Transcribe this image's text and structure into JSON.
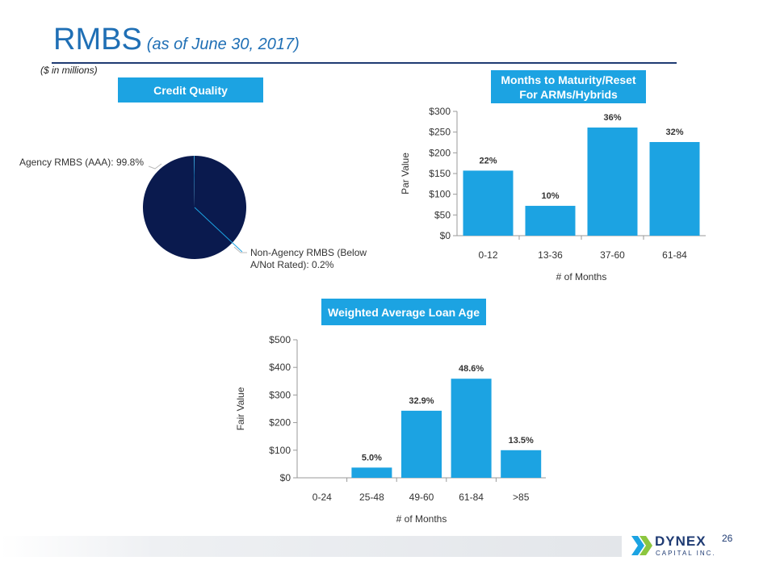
{
  "title": "RMBS",
  "subtitle": "(as of June 30, 2017)",
  "units_note": "($ in millions)",
  "page_number": "26",
  "logo": {
    "name": "DYNEX",
    "sub": "CAPITAL INC."
  },
  "colors": {
    "bar": "#1ca3e2",
    "pie_main": "#0a1a4e",
    "pie_slice": "#1ca3e2",
    "title": "#1f6fb5"
  },
  "chart_data": [
    {
      "type": "pie",
      "title": "Credit Quality",
      "labels": [
        "Agency RMBS (AAA): 99.8%",
        "Non-Agency RMBS (Below A/Not Rated): 0.2%"
      ],
      "values": [
        99.8,
        0.2
      ]
    },
    {
      "type": "bar",
      "title": "Months to Maturity/Reset For ARMs/Hybrids",
      "categories": [
        "0-12",
        "13-36",
        "37-60",
        "61-84"
      ],
      "values": [
        157,
        72,
        261,
        226
      ],
      "data_labels": [
        "22%",
        "10%",
        "36%",
        "32%"
      ],
      "xlabel": "# of Months",
      "ylabel": "Par Value",
      "ylim": [
        0,
        300
      ],
      "yticks": [
        "$0",
        "$50",
        "$100",
        "$150",
        "$200",
        "$250",
        "$300"
      ]
    },
    {
      "type": "bar",
      "title": "Weighted Average Loan Age",
      "categories": [
        "0-24",
        "25-48",
        "49-60",
        "61-84",
        ">85"
      ],
      "values": [
        0,
        37,
        243,
        359,
        100
      ],
      "data_labels": [
        "",
        "5.0%",
        "32.9%",
        "48.6%",
        "13.5%"
      ],
      "xlabel": "# of Months",
      "ylabel": "Fair Value",
      "ylim": [
        0,
        500
      ],
      "yticks": [
        "$0",
        "$100",
        "$200",
        "$300",
        "$400",
        "$500"
      ]
    }
  ]
}
